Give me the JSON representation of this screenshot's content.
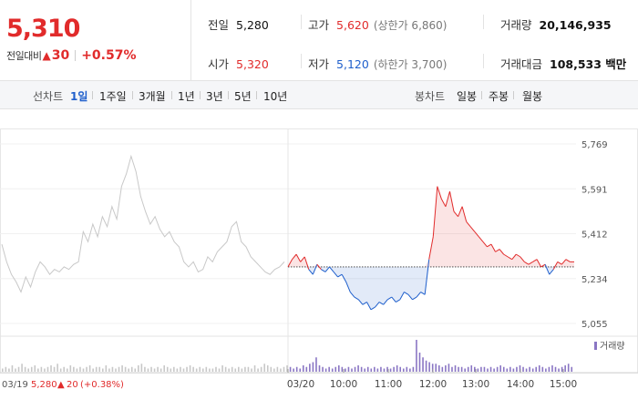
{
  "quote": {
    "price": "5,310",
    "change_label": "전일대비",
    "change_arrow": "▲",
    "change_amount": "30",
    "change_pct": "+0.57%"
  },
  "stats": {
    "prev_close_label": "전일",
    "prev_close": "5,280",
    "high_label": "고가",
    "high": "5,620",
    "upper_limit": "(상한가 6,860)",
    "volume_label": "거래량",
    "volume": "20,146,935",
    "open_label": "시가",
    "open": "5,320",
    "low_label": "저가",
    "low": "5,120",
    "lower_limit": "(하한가 3,700)",
    "value_label": "거래대금",
    "value": "108,533 백만"
  },
  "line_tabs": {
    "label": "선차트",
    "items": [
      "1일",
      "1주일",
      "3개월",
      "1년",
      "3년",
      "5년",
      "10년"
    ],
    "selected": 0
  },
  "candle_tabs": {
    "label": "봉차트",
    "items": [
      "일봉",
      "주봉",
      "월봉"
    ]
  },
  "colors": {
    "up": "#e12b2b",
    "down": "#1f5fcc",
    "prev": "#c8c8c8",
    "volume": "#8a76c4"
  },
  "chart_data": {
    "type": "line",
    "y_ticks": [
      "5,769",
      "5,591",
      "5,412",
      "5,234",
      "5,055"
    ],
    "ylim": [
      5055,
      5769
    ],
    "reference_price": 5280,
    "x_ticks": [
      "03/20",
      "10:00",
      "11:00",
      "12:00",
      "13:00",
      "14:00",
      "15:00"
    ],
    "prev_day_label": "03/19",
    "prev_day_summary": {
      "close": "5,280",
      "arrow": "▲",
      "change": "20",
      "pct": "(+0.38%)"
    },
    "volume_legend": "거래량",
    "series": [
      {
        "values": [
          5370,
          5300,
          5250,
          5220,
          5180,
          5240,
          5200,
          5260,
          5300,
          5280,
          5250,
          5270,
          5260,
          5280,
          5270,
          5290,
          5300,
          5420,
          5380,
          5450,
          5400,
          5480,
          5440,
          5520,
          5470,
          5600,
          5650,
          5720,
          5660,
          5560,
          5500,
          5450,
          5480,
          5430,
          5400,
          5420,
          5380,
          5360,
          5300,
          5280,
          5300,
          5260,
          5270,
          5320,
          5300,
          5340,
          5360,
          5380,
          5440,
          5460,
          5380,
          5360,
          5320,
          5300,
          5280,
          5260,
          5250,
          5270,
          5280,
          5300
        ]
      },
      {
        "values": [
          5280,
          5310,
          5330,
          5300,
          5320,
          5270,
          5250,
          5290,
          5270,
          5260,
          5280,
          5260,
          5240,
          5250,
          5220,
          5180,
          5160,
          5150,
          5130,
          5140,
          5110,
          5120,
          5140,
          5130,
          5150,
          5160,
          5140,
          5150,
          5180,
          5170,
          5150,
          5160,
          5180,
          5170,
          5310,
          5400,
          5600,
          5550,
          5520,
          5580,
          5500,
          5480,
          5520,
          5460,
          5440,
          5420,
          5400,
          5380,
          5360,
          5370,
          5340,
          5350,
          5330,
          5320,
          5310,
          5330,
          5320,
          5300,
          5290,
          5300,
          5310,
          5280,
          5290,
          5250,
          5270,
          5300,
          5290,
          5310,
          5300,
          5300
        ]
      }
    ],
    "volume": [
      2,
      3,
      2,
      4,
      2,
      3,
      5,
      3,
      2,
      3,
      4,
      2,
      3,
      2,
      3,
      4,
      3,
      5,
      2,
      3,
      2,
      4,
      3,
      2,
      3,
      2,
      3,
      4,
      2,
      3,
      3,
      2,
      4,
      2,
      3,
      2,
      3,
      4,
      3,
      2,
      3,
      2,
      4,
      5,
      3,
      2,
      3,
      2,
      3,
      2,
      4,
      3,
      2,
      3,
      2,
      3,
      2,
      3,
      4,
      3,
      2,
      3,
      2,
      3,
      2,
      2,
      3,
      2,
      4,
      3,
      2,
      3,
      2,
      3,
      2,
      3,
      3,
      2,
      4,
      2,
      3,
      5,
      4,
      3,
      2,
      3,
      2,
      3,
      4,
      3,
      2,
      3,
      2,
      4,
      3,
      5,
      6,
      9,
      4,
      3,
      2,
      3,
      2,
      3,
      4,
      3,
      2,
      3,
      2,
      3,
      4,
      3,
      2,
      3,
      2,
      3,
      2,
      3,
      2,
      3,
      2,
      3,
      4,
      3,
      2,
      3,
      2,
      3,
      20,
      12,
      9,
      7,
      6,
      5,
      5,
      4,
      3,
      4,
      5,
      3,
      4,
      3,
      3,
      2,
      3,
      4,
      3,
      2,
      3,
      3,
      2,
      3,
      2,
      3,
      4,
      3,
      2,
      3,
      2,
      3,
      4,
      3,
      2,
      3,
      2,
      3,
      4,
      3,
      2,
      3,
      4,
      3,
      2,
      3,
      4,
      5,
      3
    ]
  }
}
